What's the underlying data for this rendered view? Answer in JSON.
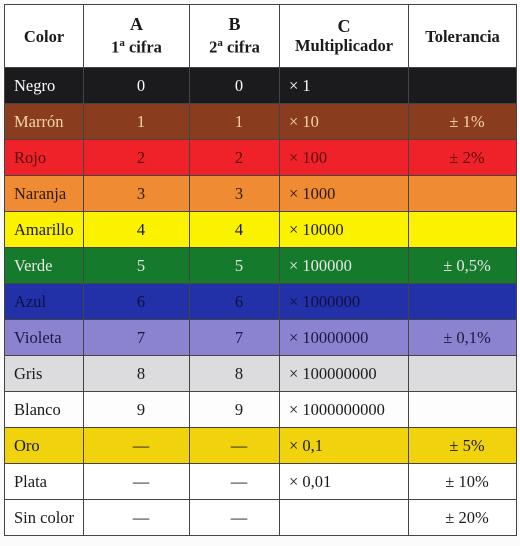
{
  "table": {
    "headers": {
      "color": "Color",
      "a_letter": "A",
      "a_label": "1",
      "a_sup": "a",
      "a_word": " cifra",
      "b_letter": "B",
      "b_label": "2",
      "b_sup": "a",
      "b_word": " cifra",
      "c_letter": "C",
      "c_label": "Multiplicador",
      "tolerance": "Tolerancia"
    },
    "rows": [
      {
        "name": "Negro",
        "a": "0",
        "b": "0",
        "mult": "× 1",
        "tol": "",
        "bg": "#1b1a1c",
        "fg": "#ffffff"
      },
      {
        "name": "Marrón",
        "a": "1",
        "b": "1",
        "mult": "× 10",
        "tol": "± 1%",
        "bg": "#8a3d1e",
        "fg": "#f6d6a8"
      },
      {
        "name": "Rojo",
        "a": "2",
        "b": "2",
        "mult": "× 100",
        "tol": "± 2%",
        "bg": "#ee2228",
        "fg": "#5a0e10"
      },
      {
        "name": "Naranja",
        "a": "3",
        "b": "3",
        "mult": "× 1000",
        "tol": "",
        "bg": "#ee8b33",
        "fg": "#2b1a0c"
      },
      {
        "name": "Amarillo",
        "a": "4",
        "b": "4",
        "mult": "× 10000",
        "tol": "",
        "bg": "#fbf200",
        "fg": "#1a1a1a"
      },
      {
        "name": "Verde",
        "a": "5",
        "b": "5",
        "mult": "× 100000",
        "tol": "± 0,5%",
        "bg": "#167a2c",
        "fg": "#e8e8e8"
      },
      {
        "name": "Azul",
        "a": "6",
        "b": "6",
        "mult": "× 1000000",
        "tol": "",
        "bg": "#2331a8",
        "fg": "#101040"
      },
      {
        "name": "Violeta",
        "a": "7",
        "b": "7",
        "mult": "× 10000000",
        "tol": "± 0,1%",
        "bg": "#8b82d0",
        "fg": "#1a1a40"
      },
      {
        "name": "Gris",
        "a": "8",
        "b": "8",
        "mult": "× 100000000",
        "tol": "",
        "bg": "#dcdcde",
        "fg": "#1a1a1a"
      },
      {
        "name": "Blanco",
        "a": "9",
        "b": "9",
        "mult": "× 1000000000",
        "tol": "",
        "bg": "#fdfdfd",
        "fg": "#1a1a1a"
      },
      {
        "name": "Oro",
        "a": "—",
        "b": "—",
        "mult": "× 0,1",
        "tol": "± 5%",
        "bg": "#f0d30c",
        "fg": "#1a1a1a"
      },
      {
        "name": "Plata",
        "a": "—",
        "b": "—",
        "mult": "× 0,01",
        "tol": "± 10%",
        "bg": "#ffffff",
        "fg": "#1a1a1a"
      },
      {
        "name": "Sin color",
        "a": "—",
        "b": "—",
        "mult": "",
        "tol": "± 20%",
        "bg": "#ffffff",
        "fg": "#1a1a1a"
      }
    ]
  }
}
